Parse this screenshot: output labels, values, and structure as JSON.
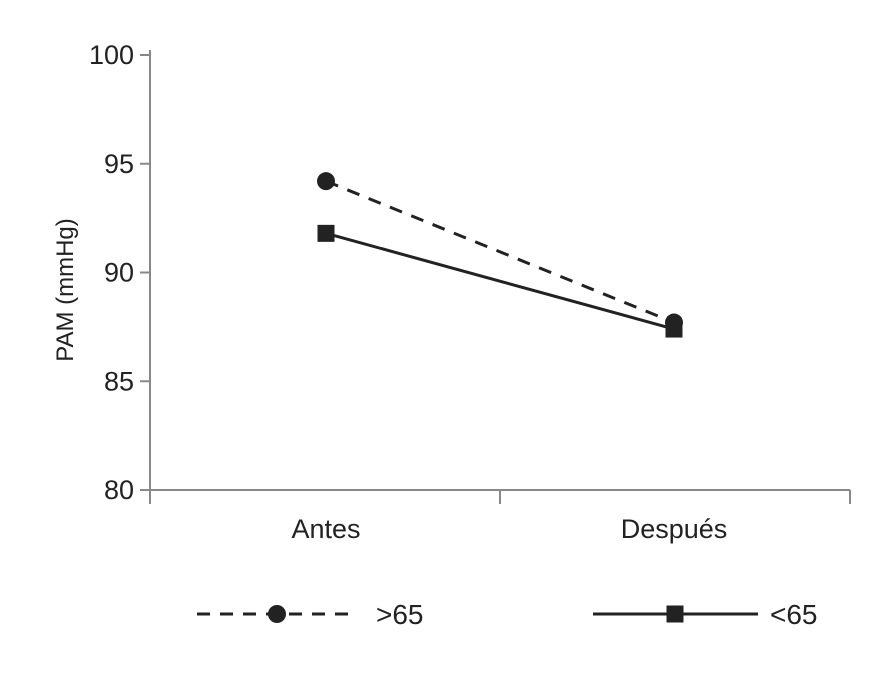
{
  "chart_data": {
    "type": "line",
    "categories": [
      "Antes",
      "Después"
    ],
    "series": [
      {
        "name": ">65",
        "values": [
          94.2,
          87.7
        ],
        "style": "dashed",
        "marker": "circle",
        "color": "#222222"
      },
      {
        "name": "<65",
        "values": [
          91.8,
          87.4
        ],
        "style": "solid",
        "marker": "square",
        "color": "#222222"
      }
    ],
    "title": "",
    "xlabel": "",
    "ylabel": "PAM (mmHg)",
    "ylim": [
      80,
      100
    ],
    "yticks": [
      80,
      85,
      90,
      95,
      100
    ],
    "grid": false,
    "legend_position": "bottom"
  }
}
